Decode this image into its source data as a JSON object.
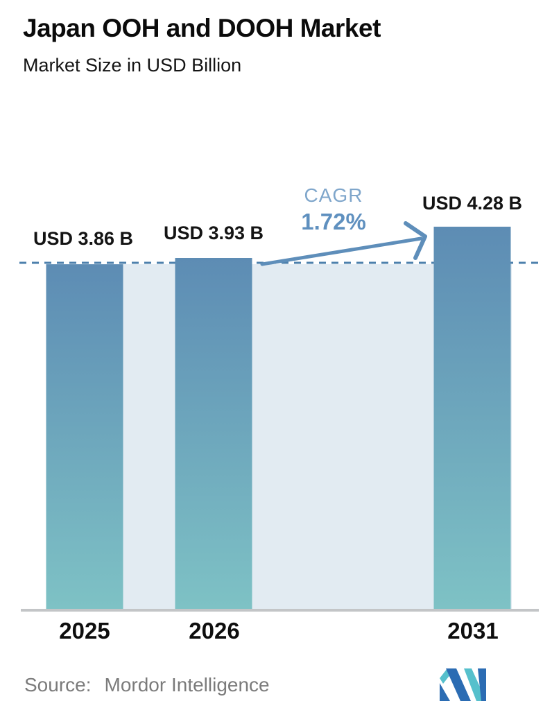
{
  "header": {
    "title": "Japan OOH and DOOH Market",
    "subtitle": "Market Size in USD Billion"
  },
  "chart_data": {
    "type": "bar",
    "title": "Japan OOH and DOOH Market",
    "subtitle": "Market Size in USD Billion",
    "unit": "USD Billion",
    "categories": [
      "2025",
      "2026",
      "2031"
    ],
    "values": [
      3.86,
      3.93,
      4.28
    ],
    "value_labels": [
      "USD 3.86 B",
      "USD 3.93 B",
      "USD 4.28 B"
    ],
    "ylim": [
      0,
      4.6
    ],
    "grid": false,
    "legend": false,
    "reference_line": {
      "at_value": 3.86,
      "style": "dashed"
    },
    "annotation": {
      "label": "CAGR",
      "value": "1.72%",
      "from_category": "2026",
      "to_category": "2031",
      "shape": "arrow-up-right"
    },
    "colors": {
      "bar_top": "#5d8cb4",
      "bar_bottom": "#7ec2c5",
      "band": "#e2ebf2",
      "dashed": "#4d80ac",
      "arrow": "#5e8eba",
      "cagr_label": "#7fa6cb",
      "cagr_value": "#5f90bf",
      "axis": "#c3c5c7"
    }
  },
  "footer": {
    "source_label": "Source:",
    "source_value": "Mordor Intelligence",
    "logo_name": "mordor-intelligence-logo",
    "logo_colors": {
      "blue": "#2b6cb3",
      "teal": "#56c0cc"
    }
  }
}
